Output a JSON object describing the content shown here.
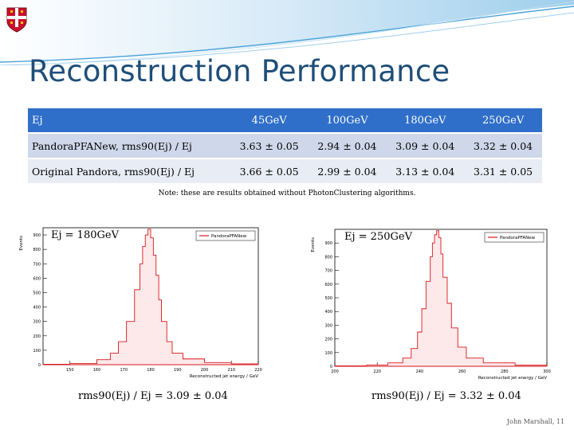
{
  "slide": {
    "title": "Reconstruction Performance",
    "table": {
      "header_label": "Ej",
      "columns": [
        "45GeV",
        "100GeV",
        "180GeV",
        "250GeV"
      ],
      "rows": [
        {
          "label": "PandoraPFANew, rms90(Ej) / Ej",
          "values": [
            "3.63 ± 0.05",
            "2.94 ± 0.04",
            "3.09 ± 0.04",
            "3.32 ± 0.04"
          ]
        },
        {
          "label": "Original Pandora, rms90(Ej) / Ej",
          "values": [
            "3.66 ± 0.05",
            "2.99 ± 0.04",
            "3.13 ± 0.04",
            "3.31 ± 0.05"
          ]
        }
      ]
    },
    "note": "Note: these are results obtained without PhotonClustering algorithms.",
    "footer": "John Marshall, 11"
  },
  "chart_data": [
    {
      "type": "histogram",
      "label_energy": "Ej = 180GeV",
      "caption": "rms90(Ej) / Ej = 3.09 ± 0.04",
      "legend": "PandoraPFANew",
      "xlabel": "Reconstructed jet energy / GeV",
      "ylabel": "Events",
      "xlim": [
        140,
        220
      ],
      "ylim": [
        0,
        950
      ],
      "xticks": [
        150,
        160,
        170,
        180,
        190,
        200,
        210,
        220
      ],
      "yticks": [
        0,
        100,
        200,
        300,
        400,
        500,
        600,
        700,
        800,
        900
      ],
      "bins": [
        [
          140,
          3
        ],
        [
          150,
          8
        ],
        [
          160,
          35
        ],
        [
          165,
          80
        ],
        [
          168,
          160
        ],
        [
          171,
          300
        ],
        [
          174,
          520
        ],
        [
          176,
          700
        ],
        [
          177,
          820
        ],
        [
          178,
          900
        ],
        [
          179,
          940
        ],
        [
          180,
          880
        ],
        [
          181,
          760
        ],
        [
          182,
          620
        ],
        [
          183,
          450
        ],
        [
          184,
          300
        ],
        [
          186,
          160
        ],
        [
          188,
          80
        ],
        [
          192,
          40
        ],
        [
          200,
          15
        ],
        [
          210,
          6
        ],
        [
          220,
          2
        ]
      ]
    },
    {
      "type": "histogram",
      "label_energy": "Ej = 250GeV",
      "caption": "rms90(Ej) / Ej = 3.32 ± 0.04",
      "legend": "PandoraPFANew",
      "xlabel": "Reconstructed jet energy / GeV",
      "ylabel": "Events",
      "xlim": [
        200,
        300
      ],
      "ylim": [
        0,
        1000
      ],
      "xticks": [
        200,
        220,
        240,
        260,
        280,
        300
      ],
      "yticks": [
        0,
        100,
        200,
        300,
        400,
        500,
        600,
        700,
        800,
        900
      ],
      "bins": [
        [
          200,
          3
        ],
        [
          215,
          10
        ],
        [
          225,
          25
        ],
        [
          232,
          60
        ],
        [
          236,
          130
        ],
        [
          239,
          250
        ],
        [
          241,
          420
        ],
        [
          243,
          620
        ],
        [
          245,
          800
        ],
        [
          246,
          900
        ],
        [
          247,
          960
        ],
        [
          248,
          990
        ],
        [
          249,
          940
        ],
        [
          250,
          820
        ],
        [
          251,
          650
        ],
        [
          253,
          460
        ],
        [
          255,
          280
        ],
        [
          258,
          140
        ],
        [
          262,
          60
        ],
        [
          270,
          25
        ],
        [
          285,
          8
        ],
        [
          300,
          2
        ]
      ]
    }
  ]
}
